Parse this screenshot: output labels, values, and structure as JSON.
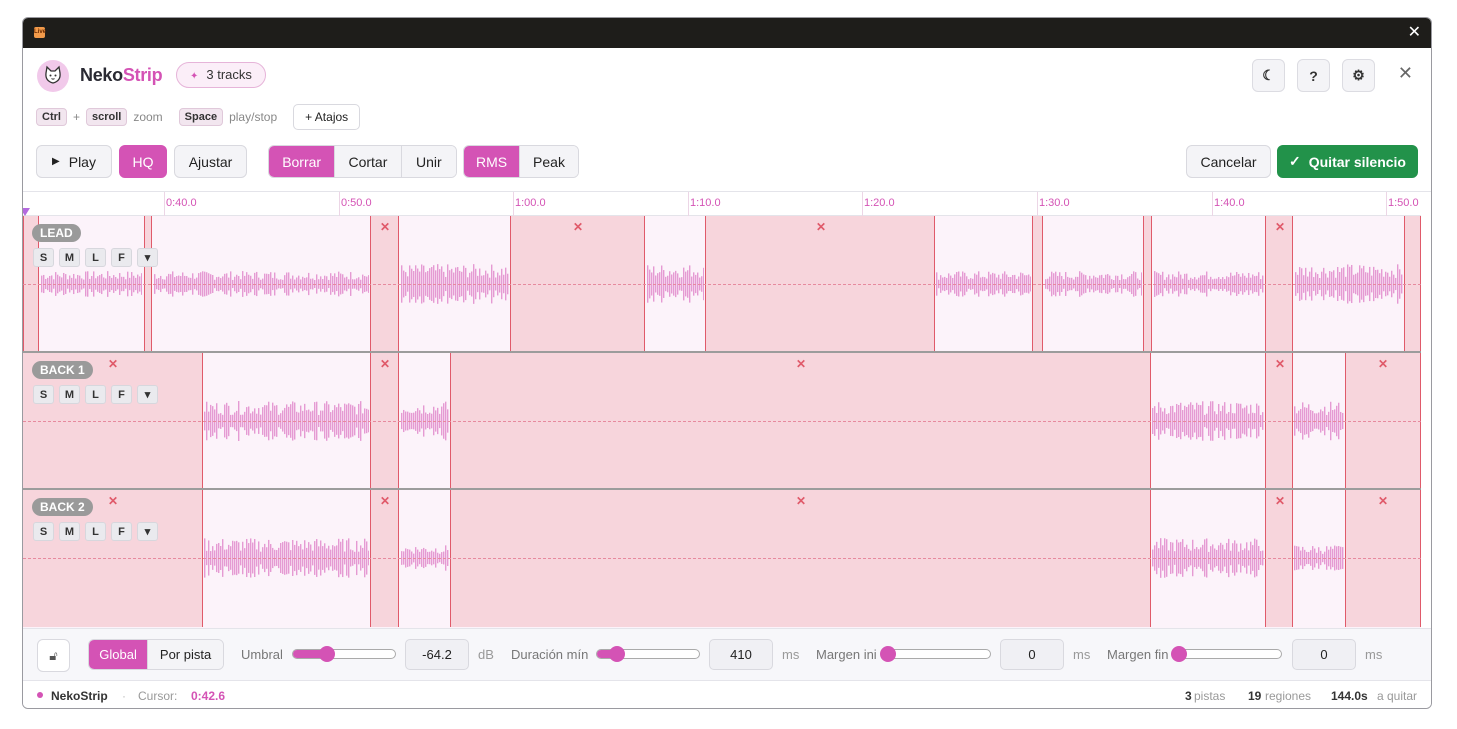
{
  "app": {
    "name_part1": "Neko",
    "name_part2": "Strip",
    "tracks_pill": "3 tracks",
    "help_label": "?"
  },
  "shortcuts": [
    {
      "key": "Ctrl"
    },
    {
      "sep": "+"
    },
    {
      "key": "scroll"
    },
    {
      "text": "zoom"
    },
    {
      "key": "Space"
    },
    {
      "text": "play/stop"
    }
  ],
  "shortcut_items": {
    "k1": "Ctrl",
    "plus": "+",
    "k2": "scroll",
    "t1": "zoom",
    "k3": "Space",
    "t2": "play/stop",
    "more": "+ Atajos"
  },
  "toolbar": {
    "play": "Play",
    "hq": "HQ",
    "ajustar": "Ajustar",
    "mode": {
      "borrar": "Borrar",
      "cortar": "Cortar",
      "unir": "Unir",
      "active": "Borrar"
    },
    "detect": {
      "rms": "RMS",
      "peak": "Peak",
      "active": "RMS"
    },
    "cancel": "Cancelar",
    "apply": "Quitar silencio"
  },
  "ruler_ticks": [
    "0:40.0",
    "0:50.0",
    "1:00.0",
    "1:10.0",
    "1:20.0",
    "1:30.0",
    "1:40.0",
    "1:50.0"
  ],
  "tracks": [
    {
      "name": "LEAD",
      "buttons": [
        "S",
        "M",
        "L",
        "F",
        "▾"
      ]
    },
    {
      "name": "BACK 1",
      "buttons": [
        "S",
        "M",
        "L",
        "F",
        "▾"
      ]
    },
    {
      "name": "BACK 2",
      "buttons": [
        "S",
        "M",
        "L",
        "F",
        "▾"
      ]
    }
  ],
  "controls": {
    "scope": {
      "global": "Global",
      "per_track": "Por pista",
      "active": "Global"
    },
    "threshold": {
      "label": "Umbral",
      "value": "-64.2",
      "unit": "dB",
      "level": 0.33
    },
    "min_duration": {
      "label": "Duración mín",
      "value": "410",
      "unit": "ms",
      "level": 0.2
    },
    "margin_start": {
      "label": "Margen ini",
      "value": "0",
      "unit": "ms",
      "level": 0
    },
    "margin_end": {
      "label": "Margen fin",
      "value": "0",
      "unit": "ms",
      "level": 0
    }
  },
  "status": {
    "app": "NekoStrip",
    "sep": "·",
    "cursor_label": "Cursor:",
    "cursor_value": "0:42.6",
    "tracks_count": "3",
    "tracks_label": "pistas",
    "regions_count": "19",
    "regions_label": "regiones",
    "remove_value": "144.0s",
    "remove_label": "a quitar"
  },
  "colors": {
    "accent": "#d453b5",
    "apply": "#22924a",
    "region": "#f7d5dc",
    "region_border": "#e05a6a",
    "wave": "#e59ad3"
  }
}
